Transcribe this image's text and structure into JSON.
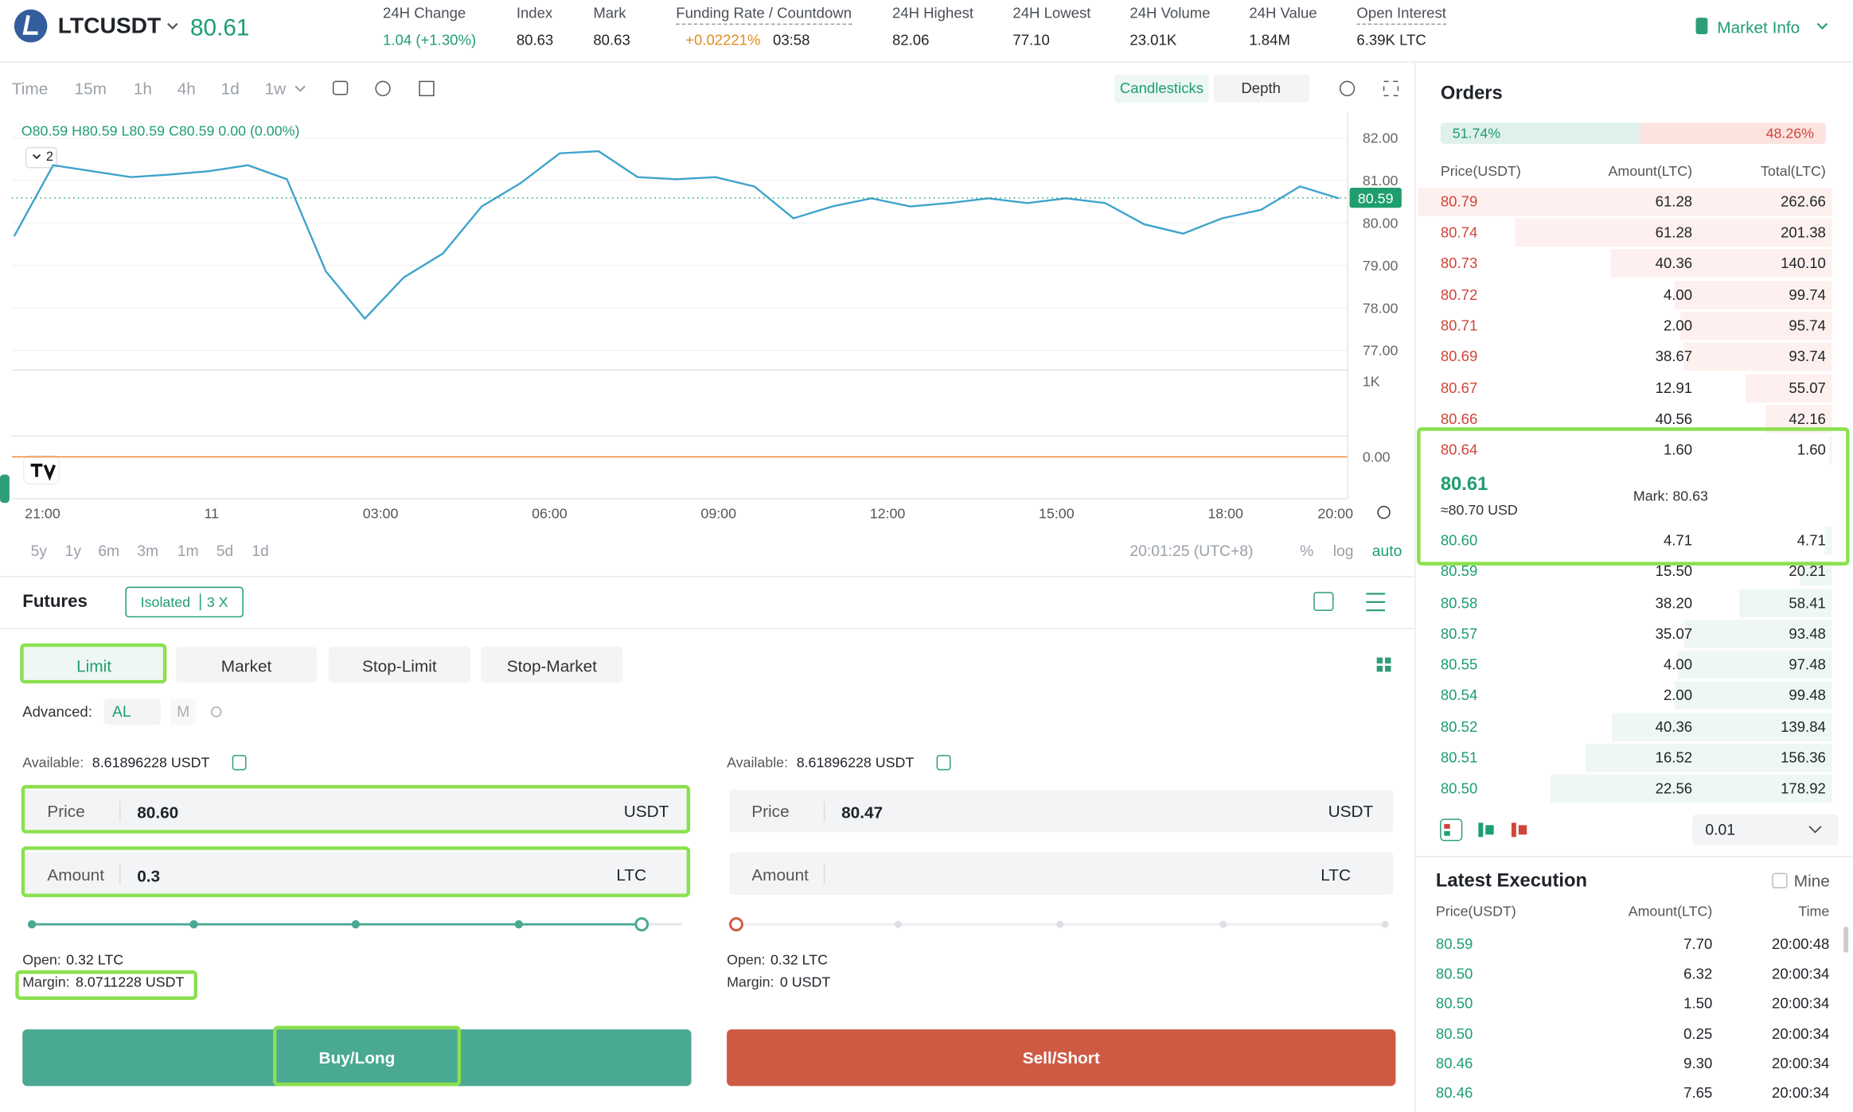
{
  "header": {
    "symbol": "LTCUSDT",
    "price": "80.61",
    "stats": [
      {
        "label": "24H Change",
        "value": "1.04 (+1.30%)"
      },
      {
        "label": "Index",
        "value": "80.63"
      },
      {
        "label": "Mark",
        "value": "80.63"
      },
      {
        "label": "24H Highest",
        "value": "82.06"
      },
      {
        "label": "24H Lowest",
        "value": "77.10"
      },
      {
        "label": "24H Volume",
        "value": "23.01K"
      },
      {
        "label": "24H Value",
        "value": "1.84M"
      },
      {
        "label": "Open Interest",
        "value": "6.39K LTC"
      }
    ],
    "funding": {
      "label": "Funding Rate / Countdown",
      "rate": "+0.02221%",
      "countdown": "03:58"
    },
    "market_info": "Market Info"
  },
  "toolbar": {
    "intervals": [
      "Time",
      "15m",
      "1h",
      "4h",
      "1d",
      "1w"
    ],
    "views": [
      "Candlesticks",
      "Depth"
    ]
  },
  "chart_data": {
    "type": "line",
    "ohlc": "O80.59 H80.59 L80.59 C80.59 0.00 (0.00%)",
    "indicator_badge": "2",
    "ylim": [
      76.58,
      82.47
    ],
    "yticks": [
      {
        "value": 82,
        "label": "82.00"
      },
      {
        "value": 81,
        "label": "81.00"
      },
      {
        "value": 80,
        "label": "80.00"
      },
      {
        "value": 79,
        "label": "79.00"
      },
      {
        "value": 78,
        "label": "78.00"
      },
      {
        "value": 77,
        "label": "77.00"
      }
    ],
    "values": [
      79.69,
      81.36,
      81.22,
      81.08,
      81.14,
      81.22,
      81.36,
      81.03,
      78.86,
      77.75,
      78.72,
      79.28,
      80.39,
      80.94,
      81.64,
      81.69,
      81.08,
      81.03,
      81.08,
      80.86,
      80.11,
      80.39,
      80.58,
      80.39,
      80.47,
      80.58,
      80.47,
      80.58,
      80.47,
      79.97,
      79.75,
      80.11,
      80.31,
      80.86,
      80.58
    ],
    "color": "#3ea3cc",
    "last_price": 80.59,
    "volume_tick": "1K",
    "macd_tick": "0.00",
    "xticks": [
      "21:00",
      "11",
      "03:00",
      "06:00",
      "09:00",
      "12:00",
      "15:00",
      "18:00",
      "20:00"
    ],
    "ranges": [
      "5y",
      "1y",
      "6m",
      "3m",
      "1m",
      "5d",
      "1d"
    ],
    "clock": "20:01:25 (UTC+8)",
    "scale_options": [
      "%",
      "log",
      "auto"
    ]
  },
  "futures": {
    "title": "Futures",
    "margin_mode": "Isolated",
    "leverage": "3 X",
    "tabs": [
      "Limit",
      "Market",
      "Stop-Limit",
      "Stop-Market"
    ],
    "advanced_label": "Advanced:",
    "advanced_options": [
      "AL",
      "M"
    ],
    "buy": {
      "available_label": "Available:",
      "available": "8.61896228 USDT",
      "price_label": "Price",
      "price": "80.60",
      "price_unit": "USDT",
      "amount_label": "Amount",
      "amount": "0.3",
      "amount_unit": "LTC",
      "open_label": "Open:",
      "open": "0.32 LTC",
      "margin_label": "Margin:",
      "margin": "8.0711228 USDT",
      "button": "Buy/Long"
    },
    "sell": {
      "available_label": "Available:",
      "available": "8.61896228 USDT",
      "price_label": "Price",
      "price": "80.47",
      "price_unit": "USDT",
      "amount_label": "Amount",
      "amount_unit": "LTC",
      "open_label": "Open:",
      "open": "0.32 LTC",
      "margin_label": "Margin:",
      "margin": "0 USDT",
      "button": "Sell/Short"
    }
  },
  "orders": {
    "title": "Orders",
    "buy_ratio": "51.74%",
    "sell_ratio": "48.26%",
    "headers": [
      "Price(USDT)",
      "Amount(LTC)",
      "Total(LTC)"
    ],
    "asks": [
      [
        "80.79",
        "61.28",
        "262.66"
      ],
      [
        "80.74",
        "61.28",
        "201.38"
      ],
      [
        "80.73",
        "40.36",
        "140.10"
      ],
      [
        "80.72",
        "4.00",
        "99.74"
      ],
      [
        "80.71",
        "2.00",
        "95.74"
      ],
      [
        "80.69",
        "38.67",
        "93.74"
      ],
      [
        "80.67",
        "12.91",
        "55.07"
      ],
      [
        "80.66",
        "40.56",
        "42.16"
      ],
      [
        "80.64",
        "1.60",
        "1.60"
      ]
    ],
    "mid_price": "80.61",
    "mid_usd": "≈80.70 USD",
    "mark": "Mark: 80.63",
    "bids": [
      [
        "80.60",
        "4.71",
        "4.71"
      ],
      [
        "80.59",
        "15.50",
        "20.21"
      ],
      [
        "80.58",
        "38.20",
        "58.41"
      ],
      [
        "80.57",
        "35.07",
        "93.48"
      ],
      [
        "80.55",
        "4.00",
        "97.48"
      ],
      [
        "80.54",
        "2.00",
        "99.48"
      ],
      [
        "80.52",
        "40.36",
        "139.84"
      ],
      [
        "80.51",
        "16.52",
        "156.36"
      ],
      [
        "80.50",
        "22.56",
        "178.92"
      ]
    ],
    "step": "0.01"
  },
  "executions": {
    "title": "Latest Execution",
    "mine": "Mine",
    "headers": [
      "Price(USDT)",
      "Amount(LTC)",
      "Time"
    ],
    "rows": [
      [
        "80.59",
        "7.70",
        "20:00:48"
      ],
      [
        "80.50",
        "6.32",
        "20:00:34"
      ],
      [
        "80.50",
        "1.50",
        "20:00:34"
      ],
      [
        "80.50",
        "0.25",
        "20:00:34"
      ],
      [
        "80.46",
        "9.30",
        "20:00:34"
      ],
      [
        "80.46",
        "7.65",
        "20:00:34"
      ]
    ]
  }
}
